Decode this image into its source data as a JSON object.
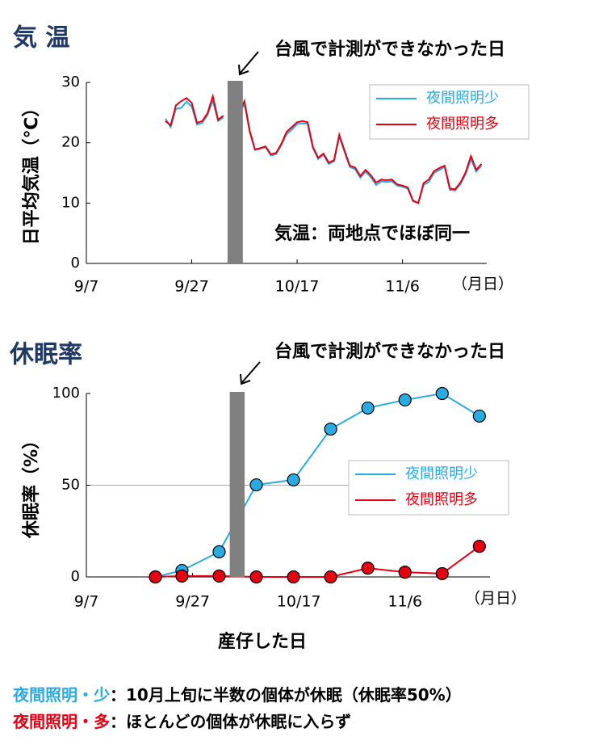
{
  "chart_data": [
    {
      "type": "line",
      "title": "気 温",
      "y_label": "日平均気温（℃）",
      "x_unit": "（月日）",
      "annotations": [
        "台風で計測ができなかった日",
        "気温：両地点でほぼ同一"
      ],
      "x": [
        15,
        16,
        17,
        18,
        19,
        20,
        21,
        22,
        23,
        24,
        25,
        26,
        27,
        28,
        29,
        30,
        31,
        32,
        33,
        34,
        35,
        36,
        37,
        38,
        39,
        40,
        41,
        42,
        43,
        44,
        45,
        46,
        47,
        48,
        49,
        50,
        51,
        52,
        53,
        54,
        55,
        56,
        57,
        58,
        59,
        60,
        61,
        62,
        63,
        64,
        65,
        66,
        67,
        68,
        69,
        70,
        71,
        72,
        73,
        74,
        75
      ],
      "series": [
        {
          "name": "夜間照明少",
          "color": "#29abe2",
          "values": [
            24.0,
            22.6,
            25.6,
            25.8,
            26.8,
            26.0,
            23.0,
            23.3,
            24.6,
            27.0,
            23.6,
            24.2,
            null,
            null,
            24.6,
            26.5,
            21.8,
            18.8,
            19.0,
            19.3,
            17.9,
            18.1,
            19.6,
            21.4,
            22.2,
            23.1,
            23.2,
            23.1,
            19.1,
            17.3,
            18.0,
            16.5,
            16.9,
            21.0,
            18.5,
            16.0,
            15.6,
            14.2,
            15.2,
            14.3,
            13.0,
            13.6,
            13.5,
            13.6,
            12.9,
            12.7,
            12.4,
            10.3,
            10.0,
            13.0,
            13.5,
            15.0,
            15.5,
            16.0,
            12.2,
            12.1,
            13.1,
            14.8,
            17.3,
            15.2,
            16.2
          ]
        },
        {
          "name": "夜間照明多",
          "color": "#e60012",
          "values": [
            23.6,
            22.9,
            26.2,
            26.9,
            27.4,
            26.6,
            23.3,
            23.6,
            24.9,
            27.7,
            23.8,
            24.5,
            null,
            null,
            24.8,
            26.9,
            22.0,
            18.9,
            19.1,
            19.4,
            18.1,
            18.3,
            19.8,
            21.8,
            22.6,
            23.4,
            23.6,
            23.4,
            19.3,
            17.5,
            18.2,
            16.7,
            17.1,
            21.3,
            18.7,
            16.2,
            15.9,
            14.5,
            15.5,
            14.6,
            13.4,
            13.9,
            13.8,
            13.9,
            13.1,
            12.9,
            12.6,
            10.4,
            10.0,
            13.3,
            13.9,
            15.3,
            15.8,
            16.2,
            12.4,
            12.3,
            13.4,
            15.1,
            17.8,
            15.5,
            16.5
          ]
        }
      ],
      "band": [
        26.8,
        29.7
      ],
      "band_color": "#808080",
      "xlim": [
        0,
        76
      ],
      "ylim": [
        0,
        30
      ],
      "xticks": [
        {
          "value": 0,
          "label": "9/7"
        },
        {
          "value": 20,
          "label": "9/27"
        },
        {
          "value": 40,
          "label": "10/17"
        },
        {
          "value": 60,
          "label": "11/6"
        }
      ],
      "yticks": [
        0,
        10,
        20,
        30
      ],
      "markers": false,
      "legend": "upper right"
    },
    {
      "type": "line",
      "title": "休眠率",
      "y_label": "休眠率（%）",
      "x_label": "産仔した日",
      "x_unit": "（月日）",
      "annotations": [
        "台風で計測ができなかった日"
      ],
      "x": [
        13,
        18,
        25,
        32,
        39,
        46,
        53,
        60,
        67,
        74
      ],
      "series": [
        {
          "name": "夜間照明少",
          "color": "#29abe2",
          "values": [
            0,
            3.5,
            13.7,
            50.2,
            52.9,
            80.6,
            92.1,
            96.5,
            100,
            87.7
          ]
        },
        {
          "name": "夜間照明多",
          "color": "#e60012",
          "values": [
            0,
            0.5,
            0.5,
            0,
            0,
            0,
            4.8,
            2.6,
            1.8,
            16.7
          ]
        }
      ],
      "band": [
        27,
        29.8
      ],
      "band_color": "#808080",
      "reference_line": 50,
      "xlim": [
        0,
        76
      ],
      "ylim": [
        0,
        100
      ],
      "xticks": [
        {
          "value": 0,
          "label": "9/7"
        },
        {
          "value": 20,
          "label": "9/27"
        },
        {
          "value": 40,
          "label": "10/17"
        },
        {
          "value": 60,
          "label": "11/6"
        }
      ],
      "yticks": [
        0,
        50,
        100
      ],
      "markers": true,
      "legend": "center right"
    }
  ],
  "notes": [
    {
      "label": "夜間照明・少",
      "label_color": "#29abe2",
      "text": "：10月上旬に半数の個体が休眠（休眠率50%）"
    },
    {
      "label": "夜間照明・多",
      "label_color": "#e60012",
      "text": "：ほとんどの個体が休眠に入らず"
    }
  ]
}
